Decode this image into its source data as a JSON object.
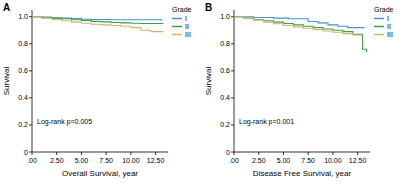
{
  "chart_data": [
    {
      "type": "line",
      "panel": "A",
      "x_label": "Overall Survival, year",
      "y_label": "Survival",
      "legend_title": "Grade",
      "annotation": "Log-rank p=0.005",
      "line_style": "step",
      "legend": "right",
      "xlim": [
        0,
        13.75
      ],
      "ylim": [
        0,
        1.05
      ],
      "xticks": [
        {
          "value": 0,
          "label": ".00"
        },
        {
          "value": 2.5,
          "label": "2.50"
        },
        {
          "value": 5,
          "label": "5.00"
        },
        {
          "value": 7.5,
          "label": "7.50"
        },
        {
          "value": 10,
          "label": "10.00"
        },
        {
          "value": 12.5,
          "label": "12.50"
        }
      ],
      "yticks": [
        0,
        0.2,
        0.4,
        0.6,
        0.8,
        {
          "value": 1,
          "label": "1.0"
        }
      ],
      "series": [
        {
          "name": "I",
          "color": "#4a90d9",
          "x": [
            0,
            1,
            2,
            3,
            4,
            5,
            6,
            8,
            13.2
          ],
          "values": [
            1,
            0.997,
            0.993,
            0.99,
            0.987,
            0.982,
            0.98,
            0.978,
            0.978
          ]
        },
        {
          "name": "II",
          "color": "#3aa63a",
          "x": [
            0,
            1,
            2,
            3,
            4,
            5,
            6,
            7,
            8,
            9,
            10,
            11,
            12,
            13.3
          ],
          "values": [
            1,
            0.995,
            0.99,
            0.985,
            0.978,
            0.972,
            0.966,
            0.962,
            0.958,
            0.955,
            0.952,
            0.95,
            0.95,
            0.95
          ]
        },
        {
          "name": "III",
          "color": "#d2b46c",
          "x": [
            0,
            1,
            2,
            3,
            4,
            5,
            6,
            7,
            8,
            9,
            10,
            11,
            12,
            13.3
          ],
          "values": [
            1,
            0.99,
            0.98,
            0.97,
            0.96,
            0.952,
            0.945,
            0.94,
            0.935,
            0.93,
            0.92,
            0.9,
            0.89,
            0.89
          ]
        }
      ]
    },
    {
      "type": "line",
      "panel": "B",
      "x_label": "Disease Free Survival, year",
      "y_label": "Survival",
      "legend_title": "Grade",
      "annotation": "Log-rank p=0.001",
      "line_style": "step",
      "legend": "right",
      "xlim": [
        0,
        13.75
      ],
      "ylim": [
        0,
        1.05
      ],
      "xticks": [
        {
          "value": 0,
          "label": ".00"
        },
        {
          "value": 2.5,
          "label": "2.50"
        },
        {
          "value": 5,
          "label": "5.00"
        },
        {
          "value": 7.5,
          "label": "7.50"
        },
        {
          "value": 10,
          "label": "10.00"
        },
        {
          "value": 12.5,
          "label": "12.50"
        }
      ],
      "yticks": [
        0,
        0.2,
        0.4,
        0.6,
        0.8,
        {
          "value": 1,
          "label": "1.0"
        }
      ],
      "series": [
        {
          "name": "I",
          "color": "#4a90d9",
          "x": [
            0,
            2,
            4,
            5.5,
            6.5,
            7.5,
            8.5,
            9.5,
            10.5,
            11.5,
            13.2
          ],
          "values": [
            1,
            0.995,
            0.99,
            0.985,
            0.985,
            0.965,
            0.955,
            0.94,
            0.93,
            0.92,
            0.92
          ]
        },
        {
          "name": "II",
          "color": "#3aa63a",
          "x": [
            0,
            1,
            2,
            3,
            4,
            5,
            6,
            7,
            8,
            9,
            10,
            11,
            12,
            13,
            13.4
          ],
          "values": [
            1,
            0.99,
            0.98,
            0.97,
            0.96,
            0.95,
            0.94,
            0.93,
            0.92,
            0.91,
            0.9,
            0.89,
            0.87,
            0.76,
            0.74
          ]
        },
        {
          "name": "III",
          "color": "#d2b46c",
          "x": [
            0,
            1,
            2,
            3,
            4,
            5,
            6,
            7,
            8,
            9,
            10,
            11,
            12,
            13
          ],
          "values": [
            1,
            0.988,
            0.975,
            0.96,
            0.948,
            0.935,
            0.925,
            0.915,
            0.905,
            0.895,
            0.885,
            0.875,
            0.865,
            0.865
          ]
        }
      ]
    }
  ]
}
